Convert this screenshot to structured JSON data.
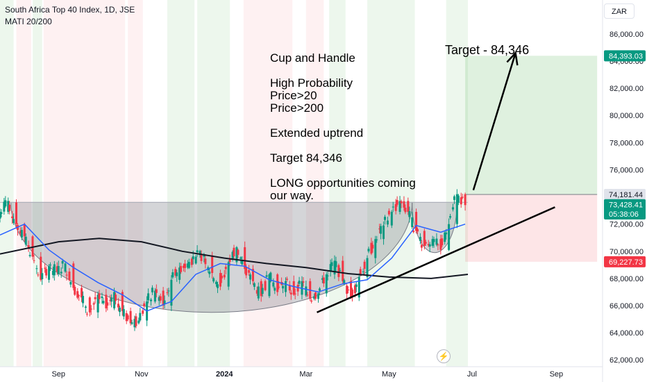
{
  "header": {
    "title": "South Africa Top 40 Index, 1D, JSE",
    "indicator": "MATI 20/200"
  },
  "currency": "ZAR",
  "lightning_icon": "lightning-icon",
  "chart_data": {
    "type": "candlestick",
    "y_axis": {
      "ticks": [
        62000,
        64000,
        66000,
        68000,
        70000,
        72000,
        74000,
        76000,
        78000,
        80000,
        82000,
        84000,
        86000
      ],
      "tick_labels": [
        "62,000.00",
        "64,000.00",
        "66,000.00",
        "68,000.00",
        "70,000.00",
        "72,000.00",
        "74,000.00",
        "76,000.00",
        "78,000.00",
        "80,000.00",
        "82,000.00",
        "84,000.00",
        "86,000.00"
      ],
      "range": [
        61500,
        88500
      ]
    },
    "x_axis": {
      "labels": [
        "Sep",
        "Nov",
        "2024",
        "Mar",
        "May",
        "Jul",
        "Sep"
      ],
      "label_dates": [
        "2023-09-01",
        "2023-11-01",
        "2024-01-01",
        "2024-03-01",
        "2024-05-01",
        "2024-07-01",
        "2024-09-01"
      ],
      "range": [
        "2023-07-20",
        "2024-10-05"
      ]
    },
    "price_labels": [
      {
        "value": "84,393.03",
        "price": 84393.03,
        "color": "#089981"
      },
      {
        "value": "74,181.44",
        "price": 74181.44,
        "color": "#e0e3eb"
      },
      {
        "value": "73,428.41",
        "price": 73428.41,
        "color": "#089981"
      },
      {
        "value": "05:38:06",
        "price": 72750,
        "color": "#089981"
      },
      {
        "value": "69,227.73",
        "price": 69227.73,
        "color": "#f23645"
      }
    ],
    "position": {
      "type": "long",
      "start": "2024-06-26",
      "end": "2024-10-01",
      "entry": 74181.44,
      "target": 84393.03,
      "stop": 69227.73
    },
    "annotations": {
      "lines": [
        "Cup and Handle",
        "",
        "High Probability",
        "Price>20",
        "Price>200",
        "",
        "Extended uptrend",
        "",
        "Target 84,346",
        "",
        "LONG opportunities coming",
        "our way."
      ],
      "target_label": "Target - 84,346"
    },
    "neckline": {
      "price": 73600,
      "start": "2023-07-20",
      "end": "2024-06-28"
    },
    "cup": {
      "left": "2023-07-28",
      "right": "2024-05-18",
      "top": 73600,
      "bottom": 65500
    },
    "handle": {
      "left": "2024-05-18",
      "right": "2024-06-20",
      "top": 73600,
      "bottom": 69900
    },
    "trendline": {
      "start_date": "2024-03-09",
      "start_price": 65500,
      "end_date": "2024-08-31",
      "end_price": 73250
    },
    "target_arrow": {
      "start_date": "2024-07-02",
      "start_price": 74500,
      "end_date": "2024-08-02",
      "end_price": 84600
    },
    "ohlc_series": [
      {
        "date": "2023-07-20",
        "open": 72400,
        "high": 73500,
        "low": 71900,
        "close": 72900
      },
      {
        "date": "2023-07-26",
        "open": 72900,
        "high": 74100,
        "low": 72500,
        "close": 73700
      },
      {
        "date": "2023-08-01",
        "open": 73600,
        "high": 73900,
        "low": 71600,
        "close": 72000
      },
      {
        "date": "2023-08-07",
        "open": 72000,
        "high": 72400,
        "low": 70700,
        "close": 71100
      },
      {
        "date": "2023-08-13",
        "open": 71100,
        "high": 71500,
        "low": 69300,
        "close": 69600
      },
      {
        "date": "2023-08-19",
        "open": 69600,
        "high": 70000,
        "low": 67400,
        "close": 67900
      },
      {
        "date": "2023-08-25",
        "open": 67900,
        "high": 69300,
        "low": 67600,
        "close": 68900
      },
      {
        "date": "2023-08-31",
        "open": 68900,
        "high": 69600,
        "low": 68300,
        "close": 68500
      },
      {
        "date": "2023-09-06",
        "open": 68500,
        "high": 69500,
        "low": 67900,
        "close": 69100
      },
      {
        "date": "2023-09-12",
        "open": 69100,
        "high": 69400,
        "low": 66900,
        "close": 67300
      },
      {
        "date": "2023-09-18",
        "open": 67300,
        "high": 67700,
        "low": 66200,
        "close": 66600
      },
      {
        "date": "2023-09-24",
        "open": 66600,
        "high": 66900,
        "low": 65100,
        "close": 65500
      },
      {
        "date": "2023-09-30",
        "open": 65500,
        "high": 67200,
        "low": 65000,
        "close": 66800
      },
      {
        "date": "2023-10-06",
        "open": 66800,
        "high": 67100,
        "low": 65400,
        "close": 65800
      },
      {
        "date": "2023-10-12",
        "open": 65800,
        "high": 67300,
        "low": 65600,
        "close": 67000
      },
      {
        "date": "2023-10-18",
        "open": 67000,
        "high": 67300,
        "low": 65300,
        "close": 65600
      },
      {
        "date": "2023-10-24",
        "open": 65600,
        "high": 66000,
        "low": 64300,
        "close": 64700
      },
      {
        "date": "2023-10-30",
        "open": 64700,
        "high": 65300,
        "low": 63600,
        "close": 64900
      },
      {
        "date": "2023-11-05",
        "open": 64900,
        "high": 66600,
        "low": 64600,
        "close": 66300
      },
      {
        "date": "2023-11-11",
        "open": 66300,
        "high": 67500,
        "low": 65900,
        "close": 67100
      },
      {
        "date": "2023-11-17",
        "open": 67100,
        "high": 67300,
        "low": 65700,
        "close": 66000
      },
      {
        "date": "2023-11-23",
        "open": 66000,
        "high": 68200,
        "low": 65800,
        "close": 67900
      },
      {
        "date": "2023-11-29",
        "open": 67900,
        "high": 69200,
        "low": 67600,
        "close": 68800
      },
      {
        "date": "2023-12-05",
        "open": 68800,
        "high": 69600,
        "low": 68300,
        "close": 69100
      },
      {
        "date": "2023-12-11",
        "open": 69100,
        "high": 70000,
        "low": 68700,
        "close": 69600
      },
      {
        "date": "2023-12-17",
        "open": 69600,
        "high": 70300,
        "low": 69100,
        "close": 69700
      },
      {
        "date": "2023-12-23",
        "open": 69700,
        "high": 69900,
        "low": 68200,
        "close": 68400
      },
      {
        "date": "2023-12-29",
        "open": 68400,
        "high": 68800,
        "low": 66900,
        "close": 67400
      },
      {
        "date": "2024-01-04",
        "open": 67400,
        "high": 69500,
        "low": 67100,
        "close": 69200
      },
      {
        "date": "2024-01-10",
        "open": 69200,
        "high": 70600,
        "low": 68900,
        "close": 70300
      },
      {
        "date": "2024-01-16",
        "open": 70300,
        "high": 70500,
        "low": 68400,
        "close": 68700
      },
      {
        "date": "2024-01-22",
        "open": 68700,
        "high": 69000,
        "low": 67400,
        "close": 67800
      },
      {
        "date": "2024-01-28",
        "open": 67800,
        "high": 68100,
        "low": 66400,
        "close": 66700
      },
      {
        "date": "2024-02-03",
        "open": 66700,
        "high": 68700,
        "low": 66400,
        "close": 68300
      },
      {
        "date": "2024-02-09",
        "open": 68300,
        "high": 68600,
        "low": 66600,
        "close": 67000
      },
      {
        "date": "2024-02-15",
        "open": 67000,
        "high": 68200,
        "low": 66700,
        "close": 67800
      },
      {
        "date": "2024-02-21",
        "open": 67800,
        "high": 68000,
        "low": 66500,
        "close": 66800
      },
      {
        "date": "2024-02-27",
        "open": 66800,
        "high": 68100,
        "low": 66500,
        "close": 67800
      },
      {
        "date": "2024-03-04",
        "open": 67800,
        "high": 68000,
        "low": 66200,
        "close": 66500
      },
      {
        "date": "2024-03-10",
        "open": 66500,
        "high": 67200,
        "low": 65500,
        "close": 66900
      },
      {
        "date": "2024-03-16",
        "open": 66900,
        "high": 68600,
        "low": 66600,
        "close": 68300
      },
      {
        "date": "2024-03-22",
        "open": 68300,
        "high": 69600,
        "low": 68000,
        "close": 69300
      },
      {
        "date": "2024-03-28",
        "open": 69300,
        "high": 69600,
        "low": 67400,
        "close": 67800
      },
      {
        "date": "2024-04-03",
        "open": 67800,
        "high": 68000,
        "low": 66300,
        "close": 66600
      },
      {
        "date": "2024-04-09",
        "open": 66600,
        "high": 68400,
        "low": 66300,
        "close": 68100
      },
      {
        "date": "2024-04-15",
        "open": 68100,
        "high": 69800,
        "low": 67800,
        "close": 69500
      },
      {
        "date": "2024-04-21",
        "open": 69500,
        "high": 71200,
        "low": 69200,
        "close": 70900
      },
      {
        "date": "2024-04-27",
        "open": 70900,
        "high": 72200,
        "low": 70600,
        "close": 71900
      },
      {
        "date": "2024-05-03",
        "open": 71900,
        "high": 73200,
        "low": 71600,
        "close": 72900
      },
      {
        "date": "2024-05-09",
        "open": 72900,
        "high": 74100,
        "low": 72600,
        "close": 73700
      },
      {
        "date": "2024-05-15",
        "open": 73700,
        "high": 74000,
        "low": 72600,
        "close": 72900
      },
      {
        "date": "2024-05-21",
        "open": 72900,
        "high": 73100,
        "low": 71200,
        "close": 71500
      },
      {
        "date": "2024-05-27",
        "open": 71500,
        "high": 71800,
        "low": 70000,
        "close": 70400
      },
      {
        "date": "2024-06-02",
        "open": 70400,
        "high": 71300,
        "low": 69800,
        "close": 70900
      },
      {
        "date": "2024-06-08",
        "open": 70900,
        "high": 71100,
        "low": 69700,
        "close": 70100
      },
      {
        "date": "2024-06-14",
        "open": 70100,
        "high": 72400,
        "low": 69900,
        "close": 72000
      },
      {
        "date": "2024-06-20",
        "open": 72000,
        "high": 74600,
        "low": 71800,
        "close": 74200
      },
      {
        "date": "2024-06-26",
        "open": 74200,
        "high": 74300,
        "low": 72500,
        "close": 73400
      }
    ],
    "ma_20": [
      {
        "date": "2023-07-20",
        "value": 71200
      },
      {
        "date": "2023-08-07",
        "value": 72000
      },
      {
        "date": "2023-08-25",
        "value": 70100
      },
      {
        "date": "2023-09-12",
        "value": 68800
      },
      {
        "date": "2023-09-30",
        "value": 67700
      },
      {
        "date": "2023-10-18",
        "value": 66800
      },
      {
        "date": "2023-11-05",
        "value": 65600
      },
      {
        "date": "2023-11-23",
        "value": 66300
      },
      {
        "date": "2023-12-11",
        "value": 68300
      },
      {
        "date": "2023-12-29",
        "value": 69100
      },
      {
        "date": "2024-01-16",
        "value": 68900
      },
      {
        "date": "2024-02-03",
        "value": 67900
      },
      {
        "date": "2024-02-21",
        "value": 67400
      },
      {
        "date": "2024-03-10",
        "value": 67000
      },
      {
        "date": "2024-03-28",
        "value": 67600
      },
      {
        "date": "2024-04-15",
        "value": 67900
      },
      {
        "date": "2024-05-03",
        "value": 69500
      },
      {
        "date": "2024-05-21",
        "value": 71900
      },
      {
        "date": "2024-06-08",
        "value": 71400
      },
      {
        "date": "2024-06-26",
        "value": 72000
      }
    ],
    "ma_200": [
      {
        "date": "2023-07-20",
        "value": 69800
      },
      {
        "date": "2023-09-01",
        "value": 70700
      },
      {
        "date": "2023-10-01",
        "value": 70950
      },
      {
        "date": "2023-11-01",
        "value": 70700
      },
      {
        "date": "2023-12-01",
        "value": 70000
      },
      {
        "date": "2024-01-01",
        "value": 69500
      },
      {
        "date": "2024-02-01",
        "value": 69100
      },
      {
        "date": "2024-03-01",
        "value": 68800
      },
      {
        "date": "2024-04-01",
        "value": 68350
      },
      {
        "date": "2024-05-01",
        "value": 68100
      },
      {
        "date": "2024-06-01",
        "value": 68000
      },
      {
        "date": "2024-06-28",
        "value": 68300
      }
    ],
    "regime_bands": [
      {
        "start": "2023-07-20",
        "end": "2023-07-30",
        "state": "up"
      },
      {
        "start": "2023-08-01",
        "end": "2023-08-12",
        "state": "down"
      },
      {
        "start": "2023-08-13",
        "end": "2023-08-20",
        "state": "up"
      },
      {
        "start": "2023-08-21",
        "end": "2023-10-20",
        "state": "down"
      },
      {
        "start": "2023-10-22",
        "end": "2023-11-02",
        "state": "down"
      },
      {
        "start": "2023-11-20",
        "end": "2023-12-10",
        "state": "up"
      },
      {
        "start": "2023-12-12",
        "end": "2024-01-05",
        "state": "up"
      },
      {
        "start": "2024-01-15",
        "end": "2024-02-20",
        "state": "down"
      },
      {
        "start": "2024-03-01",
        "end": "2024-03-14",
        "state": "down"
      },
      {
        "start": "2024-03-18",
        "end": "2024-03-30",
        "state": "up"
      },
      {
        "start": "2024-04-15",
        "end": "2024-05-20",
        "state": "up"
      },
      {
        "start": "2024-06-12",
        "end": "2024-06-28",
        "state": "up"
      }
    ]
  }
}
